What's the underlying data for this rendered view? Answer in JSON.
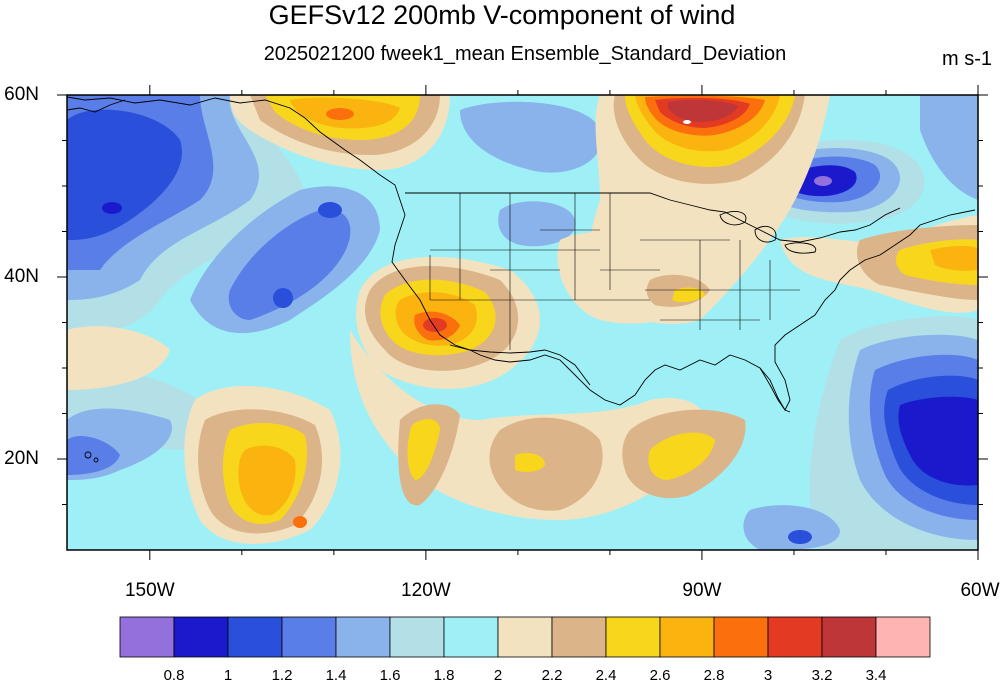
{
  "title": "GEFSv12 200mb V-component of wind",
  "subtitle": "2025021200 fweek1_mean Ensemble_Standard_Deviation",
  "units": "m s-1",
  "lat_labels": [
    {
      "text": "60N",
      "lat": 60
    },
    {
      "text": "40N",
      "lat": 40
    },
    {
      "text": "20N",
      "lat": 20
    }
  ],
  "lon_labels": [
    {
      "text": "150W",
      "lon": -150
    },
    {
      "text": "120W",
      "lon": -120
    },
    {
      "text": "90W",
      "lon": -90
    },
    {
      "text": "60W",
      "lon": -60
    }
  ],
  "map_extent": {
    "lon_min": -159,
    "lon_max": -60,
    "lat_min": 10,
    "lat_max": 60
  },
  "colorbar": {
    "levels": [
      "0.8",
      "1",
      "1.2",
      "1.4",
      "1.6",
      "1.8",
      "2",
      "2.2",
      "2.4",
      "2.6",
      "2.8",
      "3",
      "3.2",
      "3.4"
    ],
    "colors": [
      "#9370db",
      "#1a1acc",
      "#2a4fdb",
      "#5a7ee8",
      "#8ab3ec",
      "#b2e0e6",
      "#9ef0f6",
      "#f3e2c0",
      "#dcb48a",
      "#f7d61b",
      "#fbb40f",
      "#fb6f0c",
      "#e33a23",
      "#be3638",
      "#ffb4b4"
    ]
  },
  "field_features": [
    {
      "name": "high-deep-pacific-low",
      "value": 1.0
    },
    {
      "name": "high-great-lakes-max",
      "value": 3.2
    },
    {
      "name": "high-southwest-max",
      "value": 3.0
    },
    {
      "name": "high-alaska-gulf",
      "value": 2.6
    },
    {
      "name": "high-subtropical-pacific",
      "value": 2.9
    },
    {
      "name": "low-atlantic",
      "value": 1.0
    },
    {
      "name": "low-hudson",
      "value": 0.8
    }
  ]
}
